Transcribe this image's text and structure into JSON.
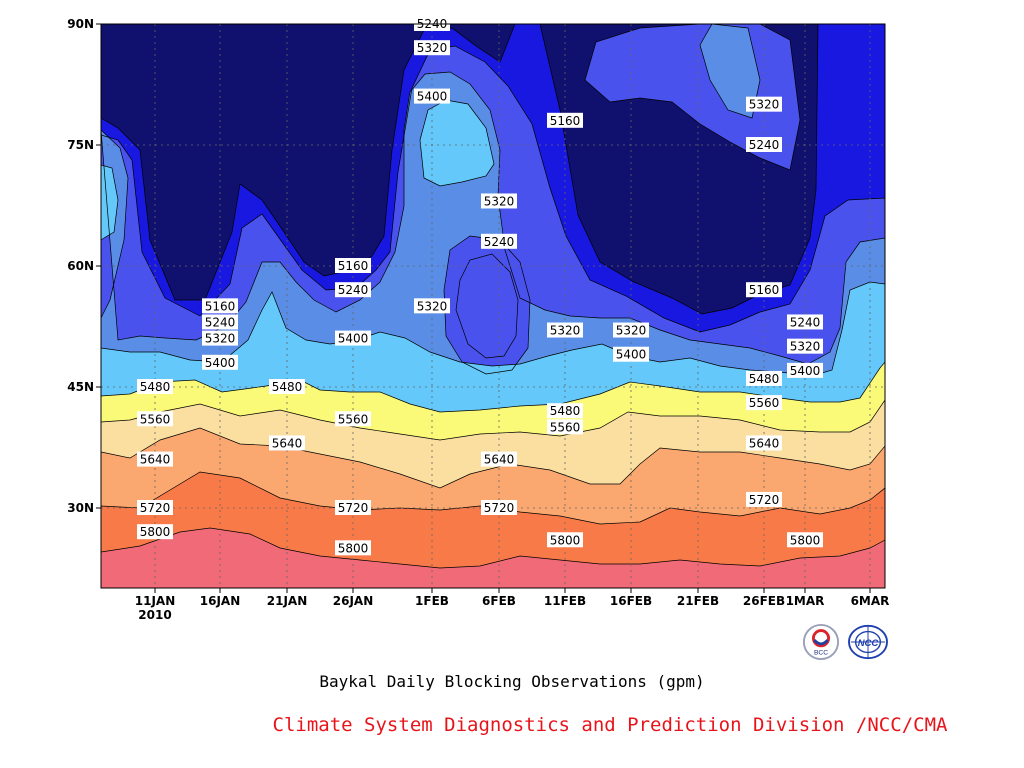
{
  "chart_data": {
    "type": "contour",
    "title": "Baykal Daily Blocking Observations (gpm)",
    "credit": "Climate System Diagnostics and Prediction Division /NCC/CMA",
    "y_ticks": [
      "30N",
      "45N",
      "60N",
      "75N",
      "90N"
    ],
    "x_ticks": [
      "11JAN",
      "16JAN",
      "21JAN",
      "26JAN",
      "1FEB",
      "6FEB",
      "11FEB",
      "16FEB",
      "21FEB",
      "26FEB",
      "1MAR",
      "6MAR"
    ],
    "x_year": "2010",
    "levels": [
      5160,
      5240,
      5320,
      5400,
      5480,
      5560,
      5640,
      5720,
      5800
    ],
    "colors": [
      "#10106e",
      "#1818e0",
      "#4a52ee",
      "#5a8ee6",
      "#64c8fa",
      "#fafa78",
      "#fadfa0",
      "#faa870",
      "#f87a48",
      "#f06a78"
    ],
    "contour_labels": [
      {
        "text": "5240",
        "x": "1FEB",
        "y": "90N"
      },
      {
        "text": "5320",
        "x": "1FEB",
        "y": "87N"
      },
      {
        "text": "5400",
        "x": "1FEB",
        "y": "81N"
      },
      {
        "text": "5160",
        "x": "11FEB",
        "y": "78N"
      },
      {
        "text": "5320",
        "x": "26FEB",
        "y": "80N"
      },
      {
        "text": "5240",
        "x": "26FEB",
        "y": "75N"
      },
      {
        "text": "5320",
        "x": "6FEB",
        "y": "68N"
      },
      {
        "text": "5240",
        "x": "6FEB",
        "y": "63N"
      },
      {
        "text": "5160",
        "x": "26JAN",
        "y": "60N"
      },
      {
        "text": "5240",
        "x": "26JAN",
        "y": "57N"
      },
      {
        "text": "5320",
        "x": "1FEB",
        "y": "55N"
      },
      {
        "text": "5160",
        "x": "16JAN",
        "y": "55N"
      },
      {
        "text": "5240",
        "x": "16JAN",
        "y": "53N"
      },
      {
        "text": "5320",
        "x": "16JAN",
        "y": "51N"
      },
      {
        "text": "5400",
        "x": "16JAN",
        "y": "48N"
      },
      {
        "text": "5400",
        "x": "26JAN",
        "y": "51N"
      },
      {
        "text": "5320",
        "x": "11FEB",
        "y": "52N"
      },
      {
        "text": "5320",
        "x": "16FEB",
        "y": "52N"
      },
      {
        "text": "5400",
        "x": "16FEB",
        "y": "49N"
      },
      {
        "text": "5160",
        "x": "26FEB",
        "y": "57N"
      },
      {
        "text": "5240",
        "x": "1MAR",
        "y": "53N"
      },
      {
        "text": "5320",
        "x": "1MAR",
        "y": "50N"
      },
      {
        "text": "5400",
        "x": "1MAR",
        "y": "47N"
      },
      {
        "text": "5480",
        "x": "11JAN",
        "y": "45N"
      },
      {
        "text": "5480",
        "x": "21JAN",
        "y": "45N"
      },
      {
        "text": "5480",
        "x": "11FEB",
        "y": "42N"
      },
      {
        "text": "5480",
        "x": "26FEB",
        "y": "46N"
      },
      {
        "text": "5560",
        "x": "11JAN",
        "y": "41N"
      },
      {
        "text": "5560",
        "x": "26JAN",
        "y": "41N"
      },
      {
        "text": "5560",
        "x": "11FEB",
        "y": "40N"
      },
      {
        "text": "5560",
        "x": "26FEB",
        "y": "43N"
      },
      {
        "text": "5640",
        "x": "11JAN",
        "y": "36N"
      },
      {
        "text": "5640",
        "x": "21JAN",
        "y": "38N"
      },
      {
        "text": "5640",
        "x": "6FEB",
        "y": "36N"
      },
      {
        "text": "5640",
        "x": "26FEB",
        "y": "38N"
      },
      {
        "text": "5720",
        "x": "11JAN",
        "y": "30N"
      },
      {
        "text": "5720",
        "x": "26JAN",
        "y": "30N"
      },
      {
        "text": "5720",
        "x": "6FEB",
        "y": "30N"
      },
      {
        "text": "5720",
        "x": "26FEB",
        "y": "31N"
      },
      {
        "text": "5800",
        "x": "11JAN",
        "y": "27N"
      },
      {
        "text": "5800",
        "x": "26JAN",
        "y": "25N"
      },
      {
        "text": "5800",
        "x": "11FEB",
        "y": "26N"
      },
      {
        "text": "5800",
        "x": "1MAR",
        "y": "26N"
      }
    ]
  }
}
